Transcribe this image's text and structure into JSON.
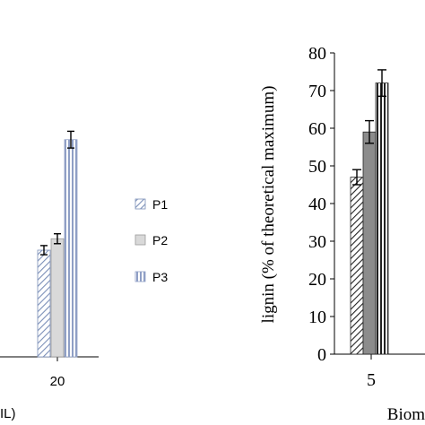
{
  "chart_data": [
    {
      "type": "bar",
      "panel": "left (cropped)",
      "categories": [
        "20"
      ],
      "series": [
        {
          "name": "P1",
          "values": [
            28
          ],
          "error": [
            1.2
          ]
        },
        {
          "name": "P2",
          "values": [
            31
          ],
          "error": [
            1.3
          ]
        },
        {
          "name": "P3",
          "values": [
            57
          ],
          "error": [
            2.2
          ]
        }
      ],
      "xlabel_fragment": "IL)",
      "ylim": [
        0,
        80
      ],
      "legend": {
        "placement": "right",
        "entries": [
          "P1",
          "P2",
          "P3"
        ]
      },
      "patterns": {
        "P1": "diagonal-hatch-blue",
        "P2": "solid-light-grey",
        "P3": "vertical-stripes-blue"
      },
      "colors": {
        "P1": "#7b8fb8",
        "P2": "#d9d9d9",
        "P3": "#8f9fc5"
      }
    },
    {
      "type": "bar",
      "panel": "right",
      "categories": [
        "5"
      ],
      "series": [
        {
          "name": "P1",
          "values": [
            47
          ],
          "error": [
            2
          ]
        },
        {
          "name": "P2",
          "values": [
            59
          ],
          "error": [
            3
          ]
        },
        {
          "name": "P3",
          "values": [
            72
          ],
          "error": [
            3.5
          ]
        }
      ],
      "ylabel": "lignin (% of theoretical maximum)",
      "xlabel_fragment": "Biom",
      "ylim": [
        0,
        80
      ],
      "yticks": [
        0,
        10,
        20,
        30,
        40,
        50,
        60,
        70,
        80
      ],
      "patterns": {
        "P1": "diagonal-hatch-black",
        "P2": "solid-dark-grey",
        "P3": "vertical-stripes-black"
      },
      "colors": {
        "P1": "#222222",
        "P2": "#8c8c8c",
        "P3": "#222222"
      }
    }
  ]
}
